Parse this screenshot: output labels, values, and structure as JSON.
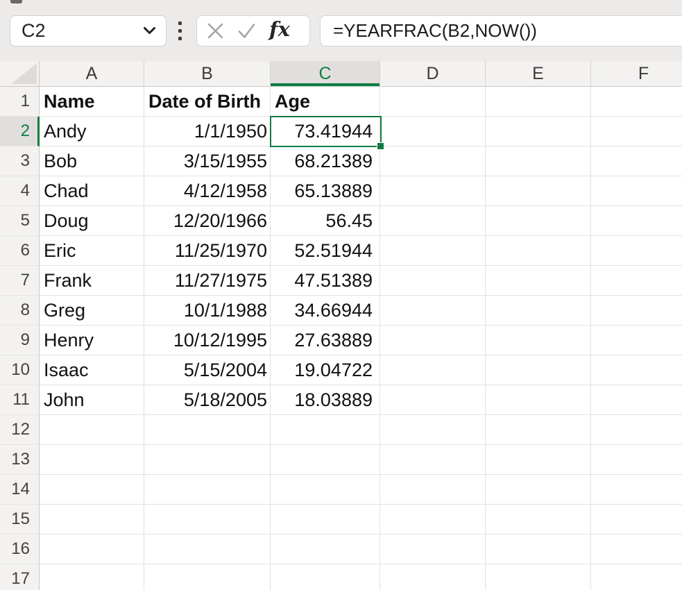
{
  "name_box": {
    "value": "C2"
  },
  "formula_bar": {
    "fx_label": "fx",
    "formula": "=YEARFRAC(B2,NOW())"
  },
  "colors": {
    "accent_green": "#107c41",
    "selected_header_bg": "#e1dfdd",
    "header_bg": "#f3f2f1",
    "gridline": "#e2e1df"
  },
  "sheet": {
    "columns": [
      "A",
      "B",
      "C",
      "D",
      "E",
      "F"
    ],
    "selected_column": "C",
    "selected_row": 2,
    "active_cell": "C2",
    "visible_row_count": 17,
    "table": {
      "headers": {
        "name": "Name",
        "dob": "Date of Birth",
        "age": "Age"
      },
      "rows": [
        {
          "name": "Andy",
          "dob": "1/1/1950",
          "age": "73.41944"
        },
        {
          "name": "Bob",
          "dob": "3/15/1955",
          "age": "68.21389"
        },
        {
          "name": "Chad",
          "dob": "4/12/1958",
          "age": "65.13889"
        },
        {
          "name": "Doug",
          "dob": "12/20/1966",
          "age": "56.45"
        },
        {
          "name": "Eric",
          "dob": "11/25/1970",
          "age": "52.51944"
        },
        {
          "name": "Frank",
          "dob": "11/27/1975",
          "age": "47.51389"
        },
        {
          "name": "Greg",
          "dob": "10/1/1988",
          "age": "34.66944"
        },
        {
          "name": "Henry",
          "dob": "10/12/1995",
          "age": "27.63889"
        },
        {
          "name": "Isaac",
          "dob": "5/15/2004",
          "age": "19.04722"
        },
        {
          "name": "John",
          "dob": "5/18/2005",
          "age": "18.03889"
        }
      ]
    }
  }
}
